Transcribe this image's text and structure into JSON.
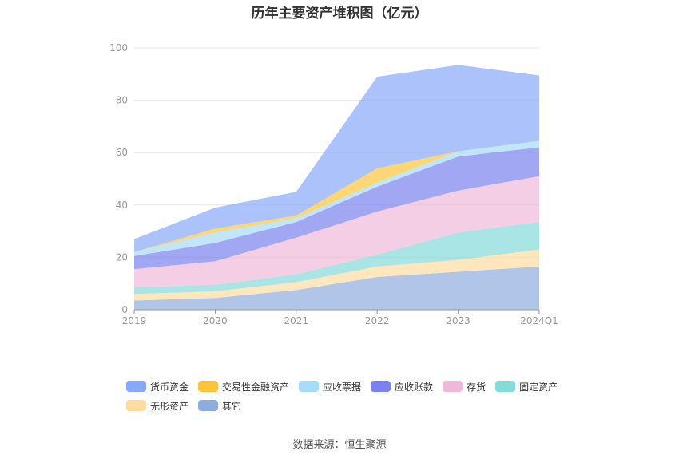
{
  "title": "历年主要资产堆积图（亿元）",
  "source": "数据来源：恒生聚源",
  "chart_data": {
    "type": "area",
    "stacked": true,
    "categories": [
      "2019",
      "2020",
      "2021",
      "2022",
      "2023",
      "2024Q1"
    ],
    "ylim": [
      0,
      100
    ],
    "yticks": [
      0,
      20,
      40,
      60,
      80,
      100
    ],
    "grid": true,
    "legend_position": "bottom",
    "series": [
      {
        "name": "其它",
        "color": "#8eacde",
        "values": [
          3.5,
          4.5,
          7.5,
          12.5,
          14.5,
          16.5
        ]
      },
      {
        "name": "无形资产",
        "color": "#fddda0",
        "values": [
          2.5,
          2.5,
          3.0,
          4.0,
          4.5,
          6.5
        ]
      },
      {
        "name": "固定资产",
        "color": "#86dada",
        "values": [
          2.5,
          2.5,
          3.0,
          4.5,
          10.5,
          10.5
        ]
      },
      {
        "name": "存货",
        "color": "#eeb9d9",
        "values": [
          7.0,
          9.0,
          14.0,
          16.5,
          16.0,
          17.5
        ]
      },
      {
        "name": "应收账款",
        "color": "#7b82ee",
        "values": [
          5.0,
          7.0,
          6.0,
          9.5,
          13.0,
          11.0
        ]
      },
      {
        "name": "应收票据",
        "color": "#a6dcf8",
        "values": [
          1.5,
          4.0,
          1.5,
          1.5,
          2.0,
          2.5
        ]
      },
      {
        "name": "交易性金融资产",
        "color": "#fcc43c",
        "values": [
          0.0,
          1.5,
          1.0,
          5.5,
          0.0,
          0.0
        ]
      },
      {
        "name": "货币资金",
        "color": "#88a8f8",
        "values": [
          5.0,
          8.0,
          9.0,
          35.0,
          33.0,
          25.0
        ]
      }
    ]
  },
  "legend_order": [
    "货币资金",
    "交易性金融资产",
    "应收票据",
    "应收账款",
    "存货",
    "固定资产",
    "无形资产",
    "其它"
  ]
}
